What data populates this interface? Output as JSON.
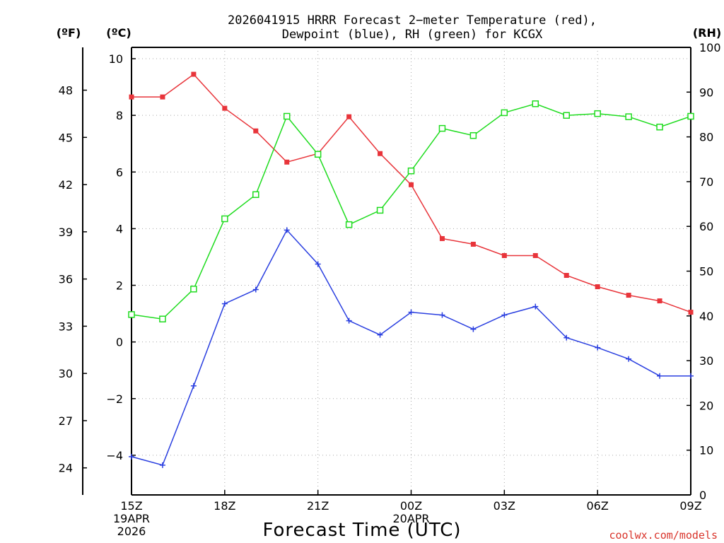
{
  "title": {
    "line1": "2026041915 HRRR Forecast 2−meter Temperature (red),",
    "line2": "Dewpoint (blue), RH (green) for KCGX"
  },
  "units": {
    "fahrenheit": "(ºF)",
    "celsius": "(ºC)",
    "rh": "(RH)"
  },
  "credit": "coolwx.com/models",
  "colors": {
    "temperature": "#e8343a",
    "dewpoint": "#2a3fe0",
    "rh": "#1fdc1f"
  },
  "chart_data": {
    "type": "line",
    "xlabel": "Forecast Time (UTC)",
    "x": [
      "15Z",
      "16Z",
      "17Z",
      "18Z",
      "19Z",
      "20Z",
      "21Z",
      "22Z",
      "23Z",
      "00Z",
      "01Z",
      "02Z",
      "03Z",
      "04Z",
      "05Z",
      "06Z",
      "07Z",
      "08Z",
      "09Z"
    ],
    "x_tick_labels": [
      {
        "index": 0,
        "lines": [
          "15Z",
          "19APR",
          "2026"
        ]
      },
      {
        "index": 3,
        "lines": [
          "18Z"
        ]
      },
      {
        "index": 6,
        "lines": [
          "21Z"
        ]
      },
      {
        "index": 9,
        "lines": [
          "00Z",
          "20APR"
        ]
      },
      {
        "index": 12,
        "lines": [
          "03Z"
        ]
      },
      {
        "index": 15,
        "lines": [
          "06Z"
        ]
      },
      {
        "index": 18,
        "lines": [
          "09Z"
        ]
      }
    ],
    "y_left_celsius": {
      "range": [
        -5.4,
        10.4
      ],
      "ticks": [
        "10",
        "8",
        "6",
        "4",
        "2",
        "0",
        "−2",
        "−4"
      ],
      "tick_values": [
        10,
        8,
        6,
        4,
        2,
        0,
        -2,
        -4
      ]
    },
    "y_left_fahrenheit": {
      "ticks": [
        "48",
        "45",
        "42",
        "39",
        "36",
        "33",
        "30",
        "27",
        "24"
      ],
      "tick_values": [
        48,
        45,
        42,
        39,
        36,
        33,
        30,
        27,
        24
      ]
    },
    "y_right_rh": {
      "range": [
        0,
        100
      ],
      "ticks": [
        "100",
        "90",
        "80",
        "70",
        "60",
        "50",
        "40",
        "30",
        "20",
        "10",
        "0"
      ],
      "tick_values": [
        100,
        90,
        80,
        70,
        60,
        50,
        40,
        30,
        20,
        10,
        0
      ]
    },
    "grid": true,
    "series": [
      {
        "name": "Temperature",
        "axis": "celsius",
        "color": "#e8343a",
        "marker": "filled-square",
        "values": [
          8.65,
          8.65,
          9.45,
          8.25,
          7.45,
          6.35,
          6.65,
          7.95,
          6.65,
          5.55,
          3.65,
          3.45,
          3.05,
          3.05,
          2.35,
          1.95,
          1.65,
          1.45,
          1.05
        ]
      },
      {
        "name": "Dewpoint",
        "axis": "celsius",
        "color": "#2a3fe0",
        "marker": "plus",
        "values": [
          -4.05,
          -4.35,
          -1.55,
          1.35,
          1.85,
          3.95,
          2.75,
          0.75,
          0.25,
          1.05,
          0.95,
          0.45,
          0.95,
          1.25,
          0.15,
          -0.2,
          -0.6,
          -1.2,
          -1.2
        ]
      },
      {
        "name": "RH",
        "axis": "rh",
        "color": "#1fdc1f",
        "marker": "open-square",
        "values": [
          40.3,
          39.3,
          46.0,
          61.7,
          67.1,
          84.6,
          76.1,
          60.4,
          63.6,
          72.4,
          81.9,
          80.3,
          85.4,
          87.4,
          84.8,
          85.2,
          84.5,
          82.2,
          84.6
        ]
      }
    ]
  }
}
